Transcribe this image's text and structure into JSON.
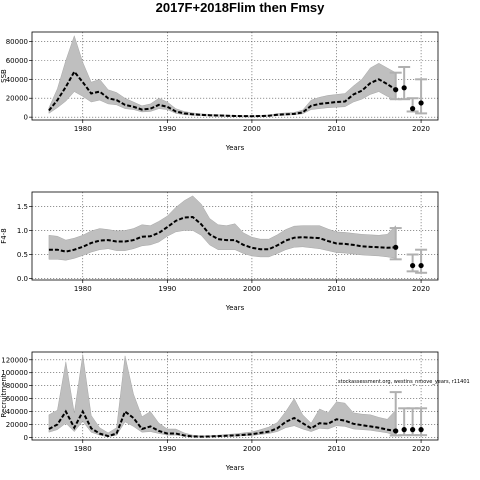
{
  "title": "2017F+2018Flim then Fmsy",
  "note": "stockassessment.org, westins_nmove_years, r11401",
  "colors": {
    "band": "#bfbfbf",
    "bandEdge": "#9a9a9a",
    "line": "#000000",
    "errbar": "#b0b0b0",
    "grid": "#555555"
  },
  "chart_data": [
    {
      "type": "line",
      "title": "",
      "xlabel": "Years",
      "ylabel": "SSB",
      "xlim": [
        1974,
        2022
      ],
      "ylim": [
        -3000,
        90000
      ],
      "xticks": [
        1980,
        1990,
        2000,
        2010,
        2020
      ],
      "xtick_labels": [
        "1980",
        "1990",
        "2000",
        "2010",
        "2020"
      ],
      "yticks": [
        0,
        20000,
        40000,
        60000,
        80000
      ],
      "ytick_labels": [
        "0",
        "20000",
        "40000",
        "60000",
        "80000"
      ],
      "grid": true,
      "x": [
        1976,
        1977,
        1978,
        1979,
        1980,
        1981,
        1982,
        1983,
        1984,
        1985,
        1986,
        1987,
        1988,
        1989,
        1990,
        1991,
        1992,
        1993,
        1994,
        1995,
        1996,
        1997,
        1998,
        1999,
        2000,
        2001,
        2002,
        2003,
        2004,
        2005,
        2006,
        2007,
        2008,
        2009,
        2010,
        2011,
        2012,
        2013,
        2014,
        2015,
        2016,
        2017
      ],
      "series": [
        {
          "role": "estimate",
          "values": [
            7000,
            18000,
            32000,
            48000,
            37000,
            25000,
            27000,
            20000,
            18000,
            13000,
            11000,
            8000,
            9000,
            13000,
            11000,
            6000,
            4000,
            3000,
            2500,
            2000,
            1800,
            1500,
            1200,
            1100,
            1000,
            1200,
            1500,
            2500,
            3000,
            3500,
            5000,
            12000,
            14000,
            15000,
            16000,
            16500,
            24000,
            28000,
            36000,
            40000,
            35000,
            29000
          ]
        },
        {
          "role": "lower",
          "values": [
            4000,
            10000,
            17000,
            27000,
            22000,
            16000,
            18000,
            14000,
            13000,
            9000,
            8000,
            5500,
            6000,
            9000,
            8000,
            4000,
            2500,
            2000,
            1500,
            1200,
            1000,
            800,
            700,
            600,
            500,
            700,
            900,
            1500,
            2000,
            2500,
            3500,
            8000,
            9000,
            10000,
            10500,
            11000,
            16000,
            19000,
            24000,
            27000,
            22000,
            18000
          ]
        },
        {
          "role": "upper",
          "values": [
            10000,
            30000,
            60000,
            86000,
            58000,
            37000,
            40000,
            29000,
            26000,
            20000,
            16000,
            12000,
            14000,
            20000,
            16000,
            9000,
            6000,
            4500,
            3500,
            3000,
            2700,
            2300,
            1900,
            1700,
            1600,
            1900,
            2300,
            3800,
            4500,
            5000,
            7500,
            18000,
            21000,
            23000,
            24000,
            25000,
            33000,
            40000,
            52000,
            57000,
            52000,
            47000
          ]
        }
      ],
      "projection": [
        {
          "x": 2017,
          "y": 29000,
          "lo": 19000,
          "hi": 47000
        },
        {
          "x": 2018,
          "y": 31000,
          "lo": 19000,
          "hi": 53000
        },
        {
          "x": 2019,
          "y": 9000,
          "lo": 6000,
          "hi": 20000
        },
        {
          "x": 2020,
          "y": 15000,
          "lo": 4000,
          "hi": 40000
        }
      ]
    },
    {
      "type": "line",
      "title": "",
      "xlabel": "Years",
      "ylabel": "F4-8",
      "xlim": [
        1974,
        2022
      ],
      "ylim": [
        -0.03,
        1.8
      ],
      "xticks": [
        1980,
        1990,
        2000,
        2010,
        2020
      ],
      "xtick_labels": [
        "1980",
        "1990",
        "2000",
        "2010",
        "2020"
      ],
      "yticks": [
        0,
        0.5,
        1.0,
        1.5
      ],
      "ytick_labels": [
        "0.0",
        "0.5",
        "1.0",
        "1.5"
      ],
      "grid": true,
      "x": [
        1976,
        1977,
        1978,
        1979,
        1980,
        1981,
        1982,
        1983,
        1984,
        1985,
        1986,
        1987,
        1988,
        1989,
        1990,
        1991,
        1992,
        1993,
        1994,
        1995,
        1996,
        1997,
        1998,
        1999,
        2000,
        2001,
        2002,
        2003,
        2004,
        2005,
        2006,
        2007,
        2008,
        2009,
        2010,
        2011,
        2012,
        2013,
        2014,
        2015,
        2016,
        2017
      ],
      "series": [
        {
          "role": "estimate",
          "values": [
            0.6,
            0.6,
            0.56,
            0.6,
            0.66,
            0.74,
            0.79,
            0.8,
            0.77,
            0.77,
            0.8,
            0.87,
            0.88,
            0.95,
            1.07,
            1.2,
            1.27,
            1.28,
            1.13,
            0.92,
            0.82,
            0.8,
            0.8,
            0.7,
            0.64,
            0.61,
            0.61,
            0.69,
            0.79,
            0.85,
            0.86,
            0.85,
            0.84,
            0.78,
            0.73,
            0.72,
            0.7,
            0.67,
            0.66,
            0.65,
            0.64,
            0.65
          ]
        },
        {
          "role": "lower",
          "values": [
            0.4,
            0.4,
            0.38,
            0.42,
            0.48,
            0.55,
            0.6,
            0.62,
            0.58,
            0.58,
            0.62,
            0.68,
            0.7,
            0.76,
            0.88,
            0.97,
            1.0,
            1.0,
            0.9,
            0.7,
            0.6,
            0.6,
            0.6,
            0.52,
            0.47,
            0.45,
            0.45,
            0.52,
            0.6,
            0.65,
            0.66,
            0.64,
            0.62,
            0.58,
            0.54,
            0.53,
            0.51,
            0.49,
            0.48,
            0.47,
            0.45,
            0.42
          ]
        },
        {
          "role": "upper",
          "values": [
            0.9,
            0.88,
            0.8,
            0.84,
            0.9,
            0.99,
            1.04,
            1.02,
            0.99,
            1.0,
            1.04,
            1.12,
            1.1,
            1.19,
            1.3,
            1.48,
            1.62,
            1.72,
            1.55,
            1.25,
            1.12,
            1.1,
            1.14,
            0.95,
            0.86,
            0.82,
            0.82,
            0.91,
            1.02,
            1.09,
            1.1,
            1.1,
            1.1,
            1.03,
            0.97,
            0.96,
            0.94,
            0.92,
            0.91,
            0.9,
            0.92,
            1.1
          ]
        }
      ],
      "projection": [
        {
          "x": 2017,
          "y": 0.65,
          "lo": 0.4,
          "hi": 1.05
        },
        {
          "x": 2019,
          "y": 0.27,
          "lo": 0.15,
          "hi": 0.5
        },
        {
          "x": 2020,
          "y": 0.27,
          "lo": 0.12,
          "hi": 0.6
        }
      ]
    },
    {
      "type": "line",
      "title": "",
      "xlabel": "Years",
      "ylabel": "Recruitment",
      "xlim": [
        1974,
        2022
      ],
      "ylim": [
        -4000,
        132000
      ],
      "xticks": [
        1980,
        1990,
        2000,
        2010,
        2020
      ],
      "xtick_labels": [
        "1980",
        "1990",
        "2000",
        "2010",
        "2020"
      ],
      "yticks": [
        0,
        20000,
        40000,
        60000,
        80000,
        100000,
        120000
      ],
      "ytick_labels": [
        "0",
        "20000",
        "40000",
        "60000",
        "80000",
        "100000",
        "120000"
      ],
      "grid": true,
      "x": [
        1976,
        1977,
        1978,
        1979,
        1980,
        1981,
        1982,
        1983,
        1984,
        1985,
        1986,
        1987,
        1988,
        1989,
        1990,
        1991,
        1992,
        1993,
        1994,
        1995,
        1996,
        1997,
        1998,
        1999,
        2000,
        2001,
        2002,
        2003,
        2004,
        2005,
        2006,
        2007,
        2008,
        2009,
        2010,
        2011,
        2012,
        2013,
        2014,
        2015,
        2016,
        2017
      ],
      "series": [
        {
          "role": "estimate",
          "values": [
            13000,
            20000,
            40000,
            15000,
            40000,
            14000,
            6000,
            2000,
            6000,
            40000,
            30000,
            13000,
            17000,
            10000,
            6000,
            6000,
            3000,
            1500,
            1200,
            1500,
            2000,
            2500,
            3000,
            4000,
            5000,
            7000,
            9000,
            14000,
            24000,
            30000,
            22000,
            14000,
            22000,
            21000,
            28000,
            26000,
            21000,
            19000,
            17000,
            15000,
            12000,
            10000
          ]
        },
        {
          "role": "lower",
          "values": [
            8000,
            12000,
            22000,
            9000,
            25000,
            8000,
            3500,
            1000,
            3500,
            24000,
            17000,
            8000,
            9000,
            6000,
            3500,
            3500,
            1800,
            900,
            700,
            900,
            1200,
            1500,
            1800,
            2500,
            3000,
            4500,
            6000,
            9000,
            15000,
            18000,
            13000,
            9000,
            14000,
            13000,
            18000,
            17000,
            13000,
            12000,
            11000,
            9000,
            7000,
            3000
          ]
        },
        {
          "role": "upper",
          "values": [
            35000,
            42000,
            117000,
            38000,
            128000,
            34000,
            15000,
            7000,
            15000,
            126000,
            67000,
            32000,
            40000,
            22000,
            13000,
            13000,
            7000,
            3500,
            2500,
            2800,
            3500,
            4500,
            5500,
            7000,
            8500,
            12000,
            16000,
            23000,
            40000,
            60000,
            35000,
            22000,
            44000,
            38000,
            55000,
            53000,
            38000,
            36000,
            35000,
            31000,
            28000,
            42000
          ]
        }
      ],
      "projection": [
        {
          "x": 2017,
          "y": 10000,
          "lo": 3000,
          "hi": 70000
        },
        {
          "x": 2018,
          "y": 12000,
          "lo": 3500,
          "hi": 45000
        },
        {
          "x": 2019,
          "y": 12000,
          "lo": 3500,
          "hi": 45000
        },
        {
          "x": 2020,
          "y": 12000,
          "lo": 3500,
          "hi": 45000
        }
      ]
    }
  ]
}
